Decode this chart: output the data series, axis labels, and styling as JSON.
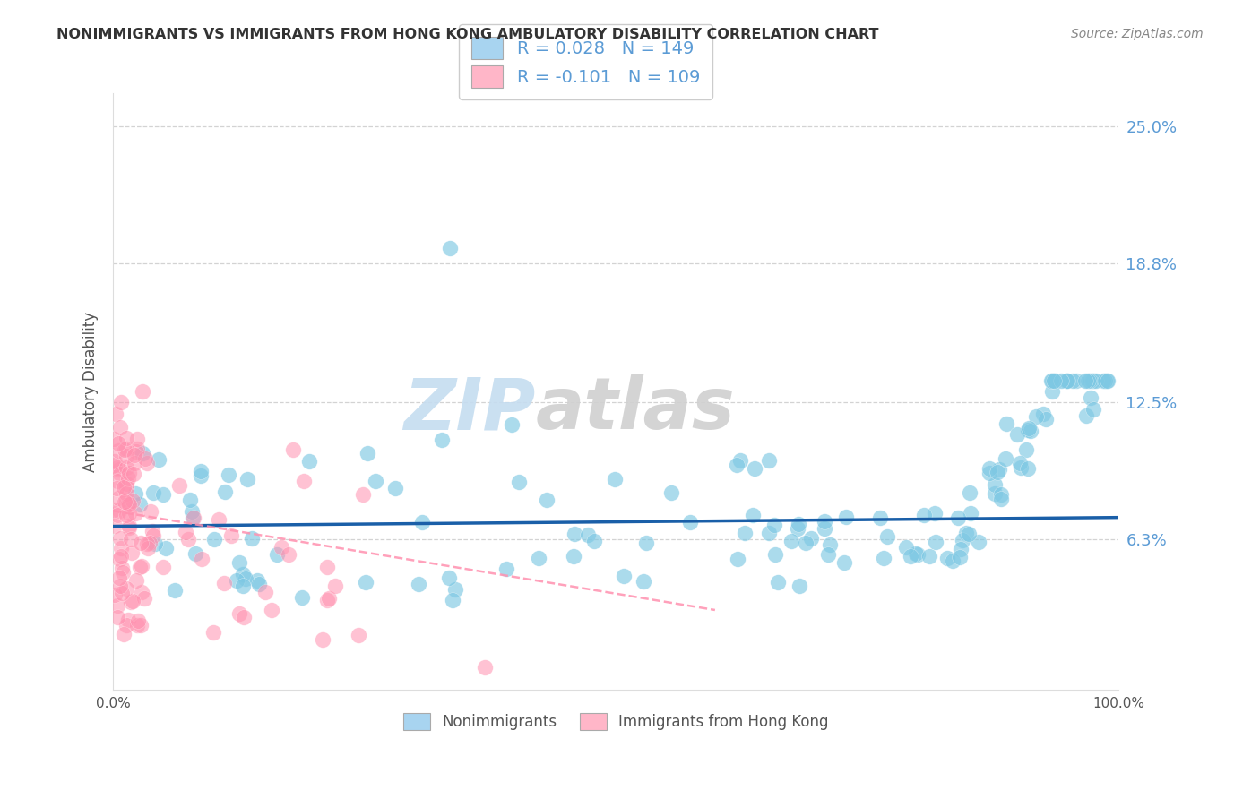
{
  "title": "NONIMMIGRANTS VS IMMIGRANTS FROM HONG KONG AMBULATORY DISABILITY CORRELATION CHART",
  "source": "Source: ZipAtlas.com",
  "ylabel": "Ambulatory Disability",
  "watermark_zip": "ZIP",
  "watermark_atlas": "atlas",
  "xlim": [
    0.0,
    1.0
  ],
  "ylim": [
    -0.005,
    0.265
  ],
  "ytick_vals": [
    0.063,
    0.125,
    0.188,
    0.25
  ],
  "ytick_labels": [
    "6.3%",
    "12.5%",
    "18.8%",
    "25.0%"
  ],
  "nonimm_R": 0.028,
  "nonimm_N": 149,
  "imm_R": -0.101,
  "imm_N": 109,
  "blue_scatter": "#7EC8E3",
  "pink_scatter": "#FF91AF",
  "trend_blue": "#1a5fa8",
  "trend_pink": "#FF91AF",
  "legend_blue_fill": "#a8d4f0",
  "legend_pink_fill": "#ffb6c8",
  "bg_color": "#ffffff",
  "grid_color": "#c8c8c8",
  "title_color": "#333333",
  "right_label_color": "#5b9bd5",
  "source_color": "#888888",
  "ylabel_color": "#555555",
  "xtick_color": "#555555"
}
